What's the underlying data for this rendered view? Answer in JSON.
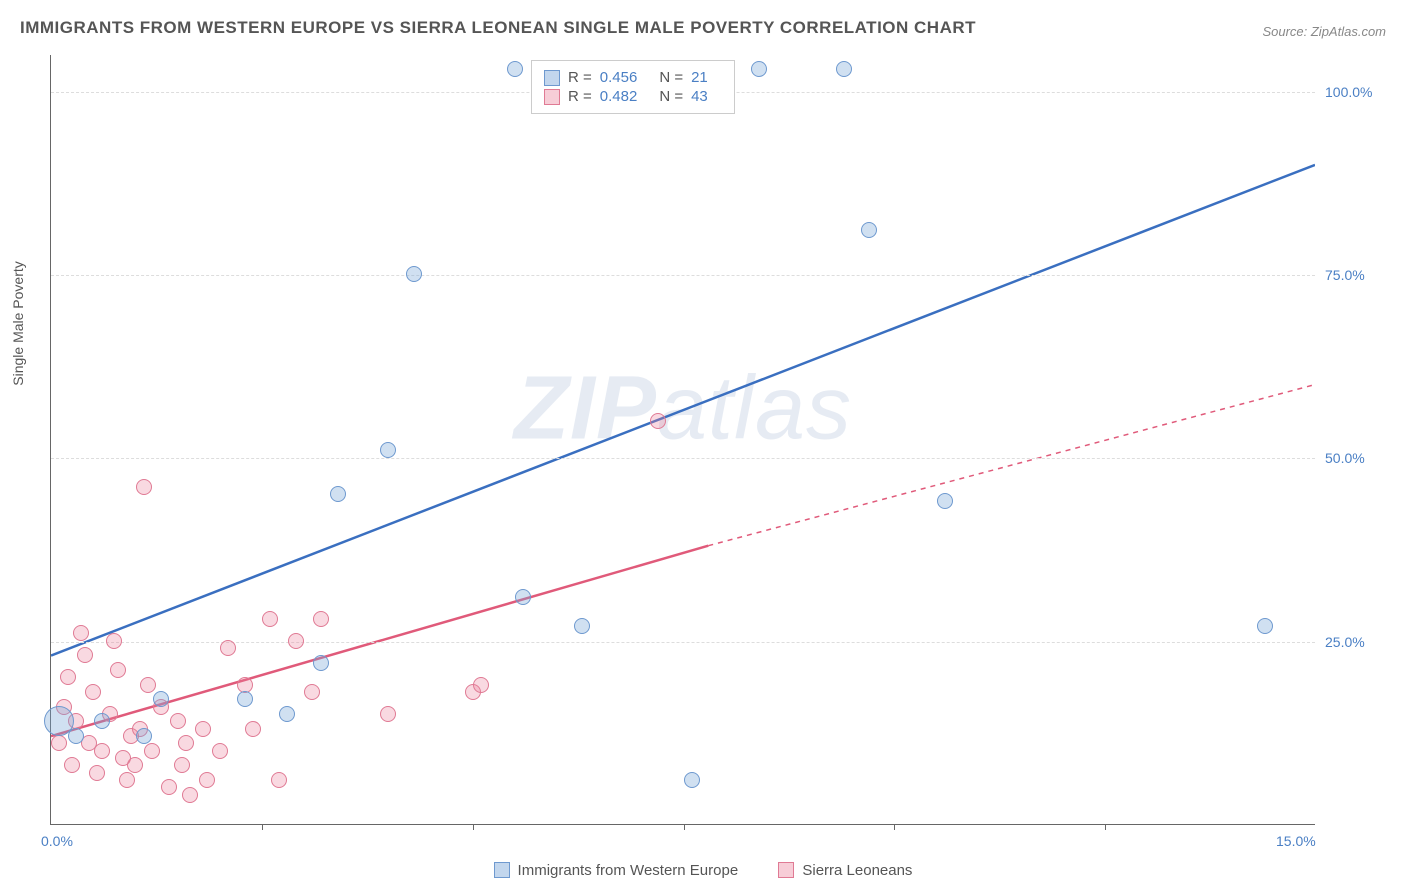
{
  "chart": {
    "type": "scatter",
    "title": "IMMIGRANTS FROM WESTERN EUROPE VS SIERRA LEONEAN SINGLE MALE POVERTY CORRELATION CHART",
    "source_label": "Source: ZipAtlas.com",
    "watermark": "ZIPatlas",
    "y_axis_label": "Single Male Poverty",
    "xlim": [
      0,
      15
    ],
    "ylim": [
      0,
      105
    ],
    "xtick_labels": [
      "0.0%",
      "15.0%"
    ],
    "xtick_positions": [
      0,
      100
    ],
    "x_inner_ticks": [
      16.67,
      33.33,
      50,
      66.67,
      83.33
    ],
    "ytick_labels": [
      "25.0%",
      "50.0%",
      "75.0%",
      "100.0%"
    ],
    "ytick_positions": [
      23.8,
      47.6,
      71.4,
      95.2
    ],
    "background_color": "#ffffff",
    "grid_color": "#dddddd",
    "axis_color": "#666666",
    "label_color": "#4a7fc4",
    "title_color": "#555555",
    "title_fontsize": 17,
    "legend_top": {
      "rows": [
        {
          "swatch": "blue",
          "r_label": "R =",
          "r_value": "0.456",
          "n_label": "N =",
          "n_value": "21"
        },
        {
          "swatch": "pink",
          "r_label": "R =",
          "r_value": "0.482",
          "n_label": "N =",
          "n_value": "43"
        }
      ]
    },
    "legend_bottom": {
      "items": [
        {
          "swatch": "blue",
          "label": "Immigrants from Western Europe"
        },
        {
          "swatch": "pink",
          "label": "Sierra Leoneans"
        }
      ]
    },
    "series": {
      "blue": {
        "color_fill": "rgba(120,165,216,0.35)",
        "color_stroke": "#6e99cf",
        "marker_size": 16,
        "trend": {
          "x1": 0,
          "y1": 23,
          "x2": 15,
          "y2": 90,
          "stroke": "#3a6fc0",
          "width": 2.5,
          "dash": "none"
        },
        "points": [
          {
            "x": 0.1,
            "y": 14,
            "size": 30
          },
          {
            "x": 0.3,
            "y": 12
          },
          {
            "x": 0.6,
            "y": 14
          },
          {
            "x": 1.1,
            "y": 12
          },
          {
            "x": 1.3,
            "y": 17
          },
          {
            "x": 2.3,
            "y": 17
          },
          {
            "x": 2.8,
            "y": 15
          },
          {
            "x": 3.2,
            "y": 22
          },
          {
            "x": 3.4,
            "y": 45
          },
          {
            "x": 4.0,
            "y": 51
          },
          {
            "x": 4.3,
            "y": 75
          },
          {
            "x": 5.5,
            "y": 103
          },
          {
            "x": 5.6,
            "y": 31
          },
          {
            "x": 6.3,
            "y": 27
          },
          {
            "x": 7.4,
            "y": 103
          },
          {
            "x": 7.6,
            "y": 6
          },
          {
            "x": 8.4,
            "y": 103
          },
          {
            "x": 9.4,
            "y": 103
          },
          {
            "x": 9.7,
            "y": 81
          },
          {
            "x": 10.6,
            "y": 44
          },
          {
            "x": 14.4,
            "y": 27
          }
        ]
      },
      "pink": {
        "color_fill": "rgba(235,130,155,0.30)",
        "color_stroke": "#e07a94",
        "marker_size": 16,
        "trend": {
          "x1": 0,
          "y1": 12,
          "x2": 7.8,
          "y2": 38,
          "stroke": "#e05a7a",
          "width": 2.5,
          "dash": "none",
          "extend": {
            "x1": 7.8,
            "y1": 38,
            "x2": 15,
            "y2": 60,
            "dash": "5,5"
          }
        },
        "points": [
          {
            "x": 0.1,
            "y": 11
          },
          {
            "x": 0.15,
            "y": 16
          },
          {
            "x": 0.2,
            "y": 20
          },
          {
            "x": 0.25,
            "y": 8
          },
          {
            "x": 0.3,
            "y": 14
          },
          {
            "x": 0.35,
            "y": 26
          },
          {
            "x": 0.4,
            "y": 23
          },
          {
            "x": 0.45,
            "y": 11
          },
          {
            "x": 0.5,
            "y": 18
          },
          {
            "x": 0.55,
            "y": 7
          },
          {
            "x": 0.6,
            "y": 10
          },
          {
            "x": 0.7,
            "y": 15
          },
          {
            "x": 0.75,
            "y": 25
          },
          {
            "x": 0.8,
            "y": 21
          },
          {
            "x": 0.85,
            "y": 9
          },
          {
            "x": 0.9,
            "y": 6
          },
          {
            "x": 0.95,
            "y": 12
          },
          {
            "x": 1.0,
            "y": 8
          },
          {
            "x": 1.05,
            "y": 13
          },
          {
            "x": 1.1,
            "y": 46
          },
          {
            "x": 1.15,
            "y": 19
          },
          {
            "x": 1.2,
            "y": 10
          },
          {
            "x": 1.3,
            "y": 16
          },
          {
            "x": 1.4,
            "y": 5
          },
          {
            "x": 1.5,
            "y": 14
          },
          {
            "x": 1.55,
            "y": 8
          },
          {
            "x": 1.6,
            "y": 11
          },
          {
            "x": 1.65,
            "y": 4
          },
          {
            "x": 1.8,
            "y": 13
          },
          {
            "x": 1.85,
            "y": 6
          },
          {
            "x": 2.0,
            "y": 10
          },
          {
            "x": 2.1,
            "y": 24
          },
          {
            "x": 2.3,
            "y": 19
          },
          {
            "x": 2.4,
            "y": 13
          },
          {
            "x": 2.6,
            "y": 28
          },
          {
            "x": 2.7,
            "y": 6
          },
          {
            "x": 2.9,
            "y": 25
          },
          {
            "x": 3.1,
            "y": 18
          },
          {
            "x": 3.2,
            "y": 28
          },
          {
            "x": 4.0,
            "y": 15
          },
          {
            "x": 5.0,
            "y": 18
          },
          {
            "x": 5.1,
            "y": 19
          },
          {
            "x": 7.2,
            "y": 55
          }
        ]
      }
    }
  }
}
